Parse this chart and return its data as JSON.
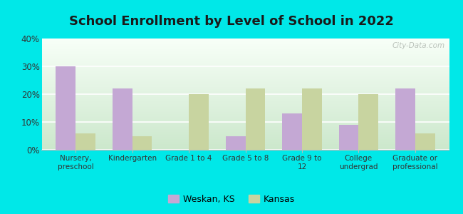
{
  "title": "School Enrollment by Level of School in 2022",
  "categories": [
    "Nursery,\npreschool",
    "Kindergarten",
    "Grade 1 to 4",
    "Grade 5 to 8",
    "Grade 9 to\n12",
    "College\nundergrad",
    "Graduate or\nprofessional"
  ],
  "weskan_values": [
    30,
    22,
    0,
    5,
    13,
    9,
    22
  ],
  "kansas_values": [
    6,
    5,
    20,
    22,
    22,
    20,
    6
  ],
  "weskan_color": "#c4a8d4",
  "kansas_color": "#c8d4a0",
  "background_outer": "#00e8e8",
  "background_plot_top": "#f8fff8",
  "background_plot_bottom": "#cce8cc",
  "ylim": [
    0,
    40
  ],
  "yticks": [
    0,
    10,
    20,
    30,
    40
  ],
  "ytick_labels": [
    "0%",
    "10%",
    "20%",
    "30%",
    "40%"
  ],
  "watermark": "City-Data.com",
  "legend_weskan": "Weskan, KS",
  "legend_kansas": "Kansas",
  "title_fontsize": 13,
  "bar_width": 0.35
}
